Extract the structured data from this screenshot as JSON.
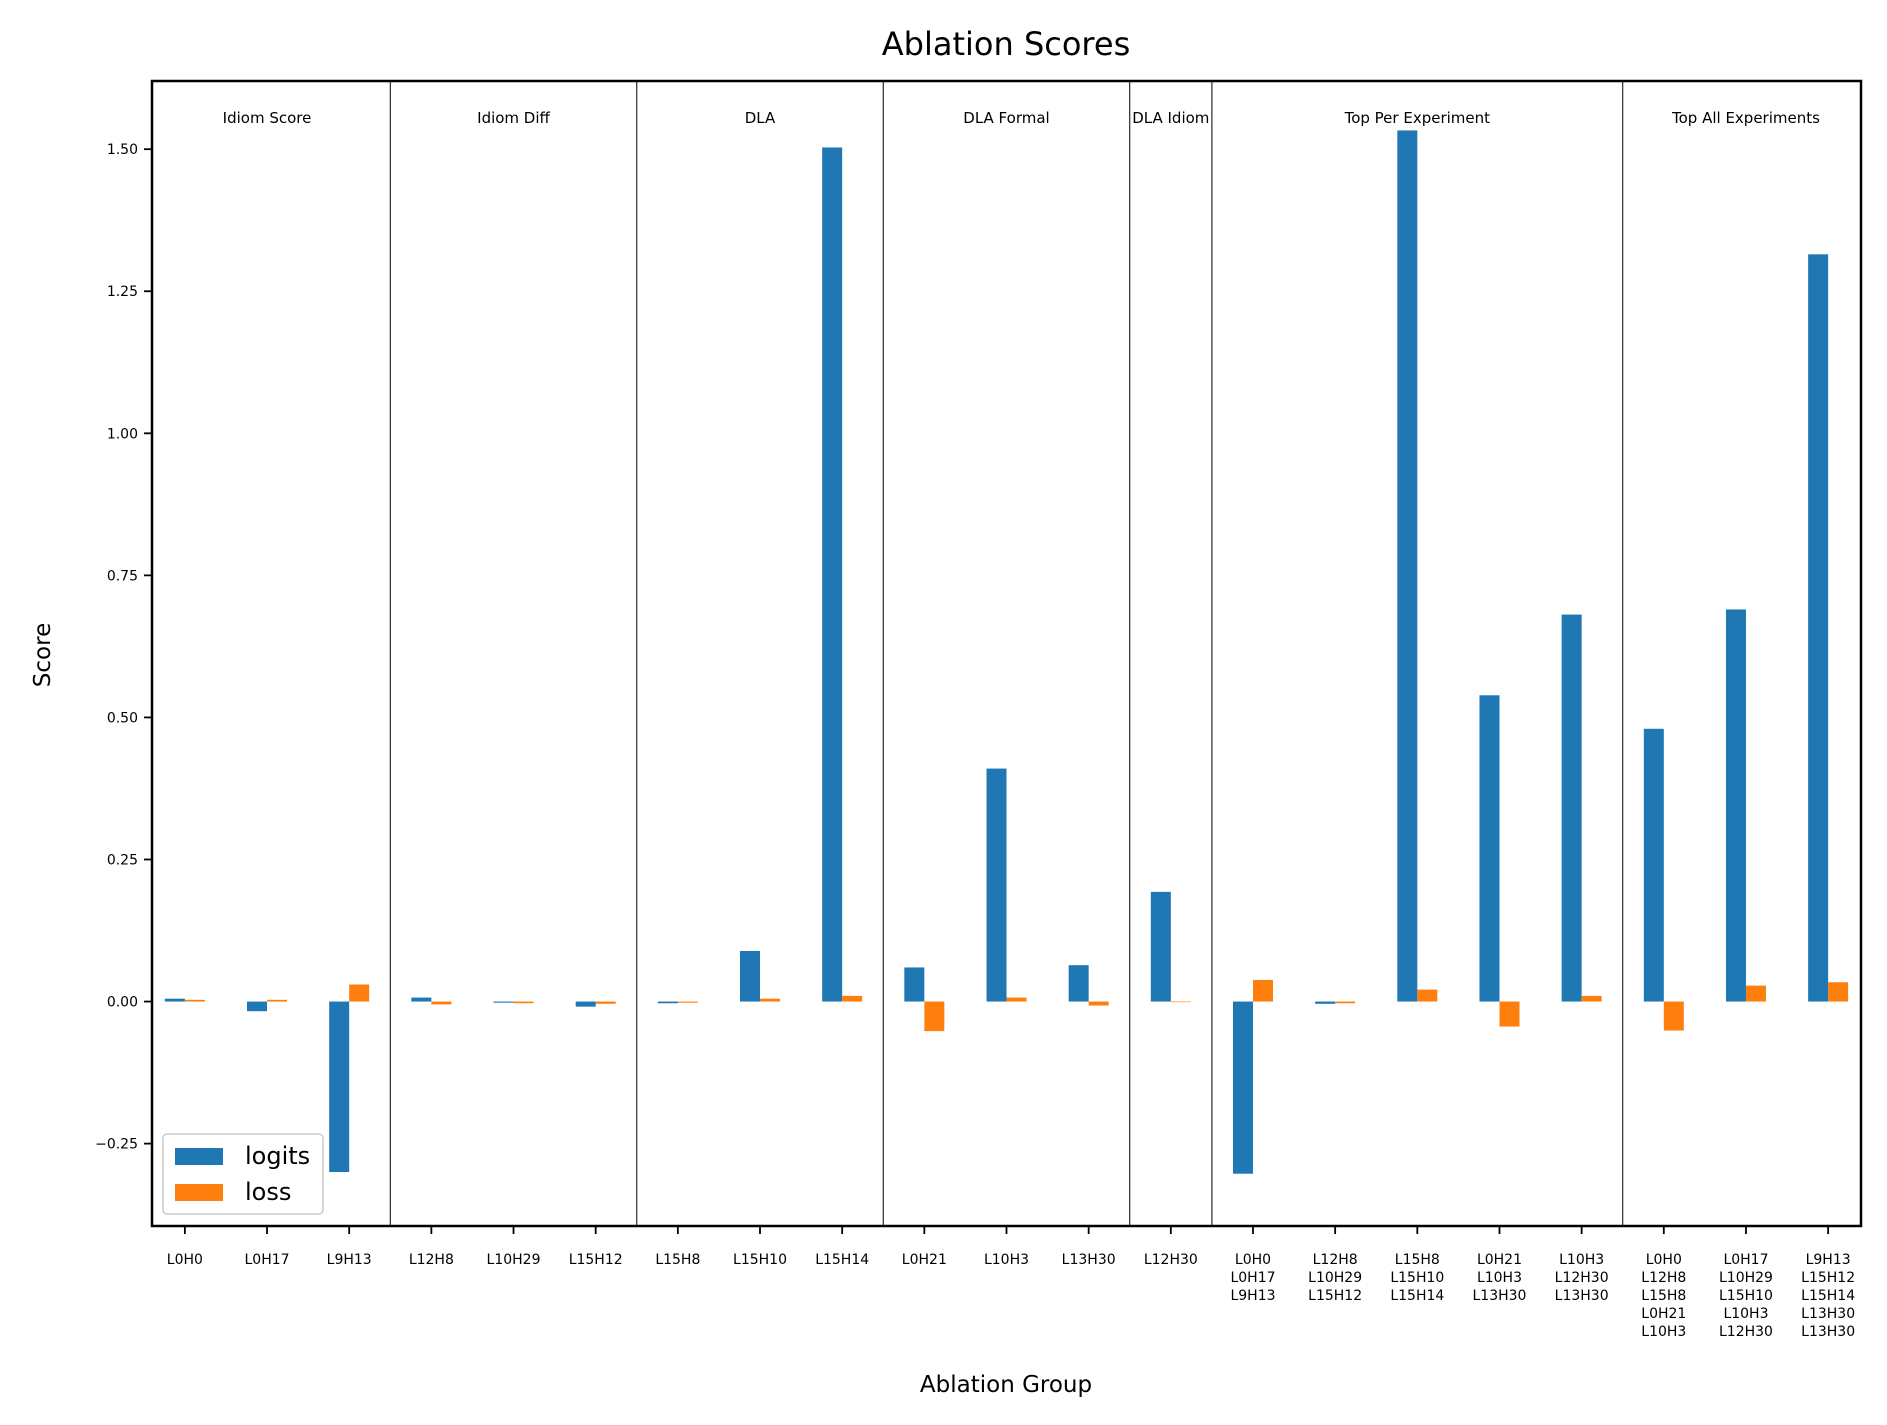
{
  "chart_data": {
    "type": "bar",
    "title": "Ablation Scores",
    "xlabel": "Ablation Group",
    "ylabel": "Score",
    "ylim": [
      -0.395,
      1.62
    ],
    "yticks": [
      -0.25,
      0.0,
      0.25,
      0.5,
      0.75,
      1.0,
      1.25,
      1.5
    ],
    "ytick_labels": [
      "−0.25",
      "0.00",
      "0.25",
      "0.50",
      "0.75",
      "1.00",
      "1.25",
      "1.50"
    ],
    "grid": false,
    "legend_position": "lower-left",
    "categories": [
      [
        "L0H0"
      ],
      [
        "L0H17"
      ],
      [
        "L9H13"
      ],
      [
        "L12H8"
      ],
      [
        "L10H29"
      ],
      [
        "L15H12"
      ],
      [
        "L15H8"
      ],
      [
        "L15H10"
      ],
      [
        "L15H14"
      ],
      [
        "L0H21"
      ],
      [
        "L10H3"
      ],
      [
        "L13H30"
      ],
      [
        "L12H30"
      ],
      [
        "L0H0",
        "L0H17",
        "L9H13"
      ],
      [
        "L12H8",
        "L10H29",
        "L15H12"
      ],
      [
        "L15H8",
        "L15H10",
        "L15H14"
      ],
      [
        "L0H21",
        "L10H3",
        "L13H30"
      ],
      [
        "L10H3",
        "L12H30",
        "L13H30"
      ],
      [
        "L0H0",
        "L12H8",
        "L15H8",
        "L0H21",
        "L10H3"
      ],
      [
        "L0H17",
        "L10H29",
        "L15H10",
        "L10H3",
        "L12H30"
      ],
      [
        "L9H13",
        "L15H12",
        "L15H14",
        "L13H30",
        "L13H30"
      ]
    ],
    "groups": [
      {
        "name": "Idiom Score",
        "start": 0,
        "end": 2
      },
      {
        "name": "Idiom Diff",
        "start": 3,
        "end": 5
      },
      {
        "name": "DLA",
        "start": 6,
        "end": 8
      },
      {
        "name": "DLA Formal",
        "start": 9,
        "end": 11
      },
      {
        "name": "DLA Idiom",
        "start": 12,
        "end": 12
      },
      {
        "name": "Top Per Experiment",
        "start": 13,
        "end": 17
      },
      {
        "name": "Top All Experiments",
        "start": 18,
        "end": 20
      }
    ],
    "series": [
      {
        "name": "logits",
        "color": "#1f77b4",
        "values": [
          0.005,
          -0.017,
          -0.3,
          0.007,
          -0.002,
          -0.009,
          -0.003,
          0.089,
          1.503,
          0.06,
          0.41,
          0.064,
          0.193,
          -0.303,
          -0.004,
          1.533,
          0.539,
          0.681,
          0.48,
          0.69,
          1.315
        ]
      },
      {
        "name": "loss",
        "color": "#ff7f0e",
        "values": [
          0.003,
          0.003,
          0.03,
          -0.005,
          -0.003,
          -0.004,
          -0.002,
          0.005,
          0.01,
          -0.052,
          0.007,
          -0.007,
          0.0,
          0.038,
          -0.003,
          0.021,
          -0.044,
          0.01,
          -0.051,
          0.028,
          0.034
        ]
      }
    ]
  }
}
